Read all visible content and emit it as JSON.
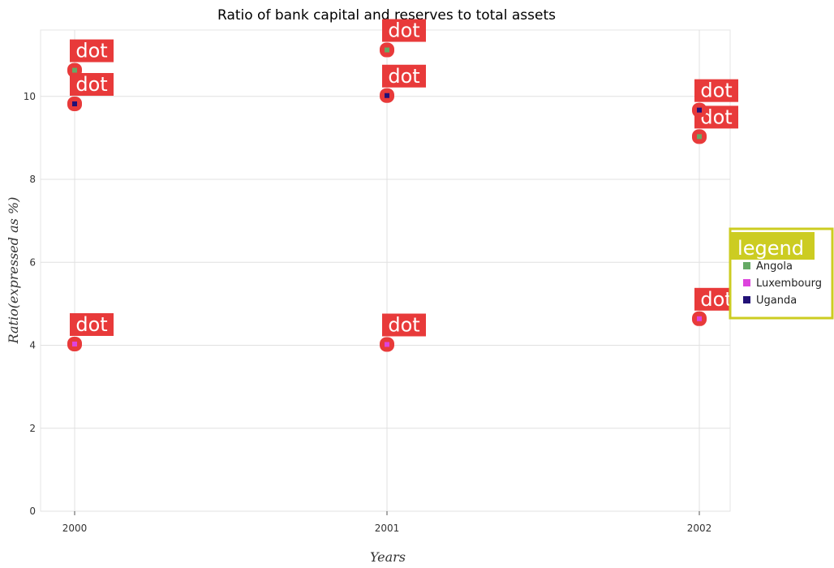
{
  "chart_data": {
    "type": "scatter",
    "title": "Ratio of bank capital and reserves to total assets",
    "xlabel": "Years",
    "ylabel": "Ratio(expressed as %)",
    "categories": [
      "2000",
      "2001",
      "2002"
    ],
    "ylim": [
      0,
      11.6
    ],
    "yticks": [
      0,
      2,
      4,
      6,
      8,
      10
    ],
    "grid": true,
    "legend_position": "right",
    "legend_title": "legend",
    "marker_label": "dot",
    "series": [
      {
        "name": "Angola",
        "color": "#66aa66",
        "values": [
          10.63,
          11.12,
          9.03
        ]
      },
      {
        "name": "Luxembourg",
        "color": "#dd44dd",
        "values": [
          4.03,
          4.02,
          4.64
        ]
      },
      {
        "name": "Uganda",
        "color": "#221177",
        "values": [
          9.82,
          10.02,
          9.67
        ]
      }
    ],
    "colors": {
      "badge": "#e83a3a",
      "legend_border": "#cccc22",
      "legend_title_bg": "#cccc22"
    }
  }
}
